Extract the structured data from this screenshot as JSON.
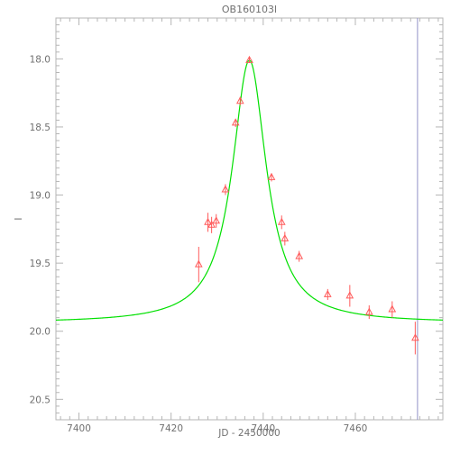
{
  "chart_data": {
    "type": "scatter",
    "title": "OB160103l",
    "xlabel": "JD - 2450000",
    "ylabel": "I",
    "xlim": [
      7395,
      7479
    ],
    "ylim": [
      20.65,
      17.7
    ],
    "y_inverted": true,
    "x_ticks": [
      7400,
      7420,
      7440,
      7460
    ],
    "x_tick_labels": [
      "7400",
      "7420",
      "7440",
      "7460"
    ],
    "y_ticks": [
      18.0,
      18.5,
      19.0,
      19.5,
      20.0,
      20.5
    ],
    "y_tick_labels": [
      "18.0",
      "18.5",
      "19.0",
      "19.5",
      "20.0",
      "20.5"
    ],
    "grid": false,
    "series": [
      {
        "marker": "open-triangle",
        "color": "#ff5a5a",
        "points": [
          {
            "x": 7426.0,
            "y": 19.51,
            "err": 0.13
          },
          {
            "x": 7428.0,
            "y": 19.2,
            "err": 0.07
          },
          {
            "x": 7428.8,
            "y": 19.22,
            "err": 0.06
          },
          {
            "x": 7429.8,
            "y": 19.19,
            "err": 0.05
          },
          {
            "x": 7431.8,
            "y": 18.96,
            "err": 0.04
          },
          {
            "x": 7434.0,
            "y": 18.47,
            "err": 0.03
          },
          {
            "x": 7435.0,
            "y": 18.31,
            "err": 0.03
          },
          {
            "x": 7437.0,
            "y": 18.01,
            "err": 0.02
          },
          {
            "x": 7441.8,
            "y": 18.87,
            "err": 0.03
          },
          {
            "x": 7444.0,
            "y": 19.2,
            "err": 0.05
          },
          {
            "x": 7444.7,
            "y": 19.32,
            "err": 0.05
          },
          {
            "x": 7447.8,
            "y": 19.45,
            "err": 0.04
          },
          {
            "x": 7454.0,
            "y": 19.73,
            "err": 0.04
          },
          {
            "x": 7458.8,
            "y": 19.74,
            "err": 0.08
          },
          {
            "x": 7463.0,
            "y": 19.86,
            "err": 0.05
          },
          {
            "x": 7468.0,
            "y": 19.84,
            "err": 0.06
          },
          {
            "x": 7473.0,
            "y": 20.05,
            "err": 0.12
          }
        ]
      }
    ],
    "model_curve": {
      "color": "#00e000",
      "peak_x": 7437.0,
      "peak_y": 18.01,
      "baseline_y": 19.94,
      "width_days": 4.5
    },
    "vertical_marker": {
      "x": 7473.5,
      "color": "#9090c8"
    }
  }
}
